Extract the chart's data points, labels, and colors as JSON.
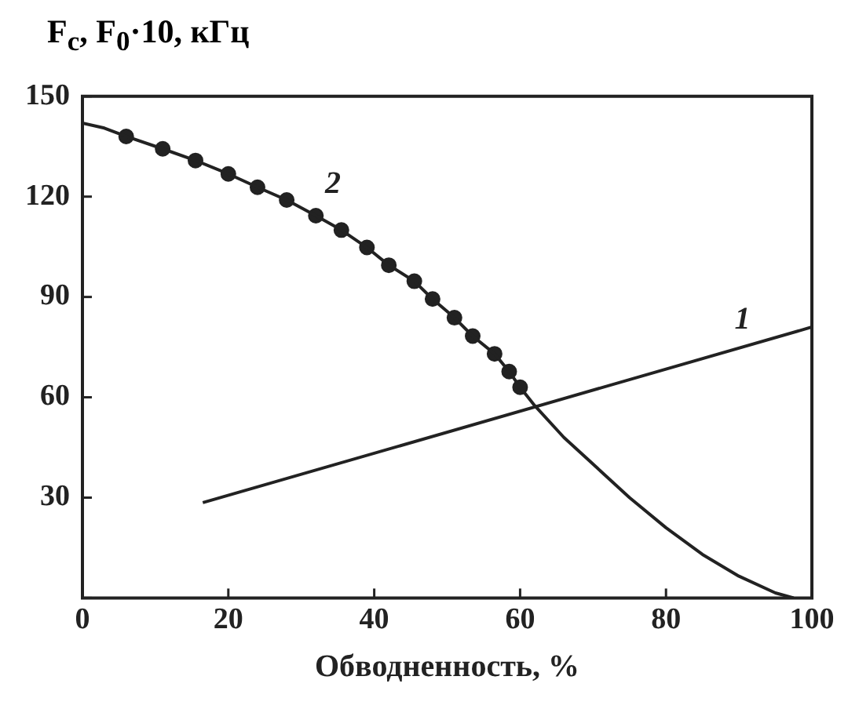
{
  "chart_data": {
    "type": "line",
    "ylabel": "F$_{c}$, F$_{0}$·10, кГц",
    "xlabel": "Обводненность, %",
    "xlim": [
      0,
      100
    ],
    "xticks": [
      0,
      20,
      40,
      60,
      80,
      100
    ],
    "ylim": [
      0,
      150
    ],
    "yticks": [
      {
        "value": 0,
        "label": null
      },
      30,
      60,
      90,
      120,
      150
    ],
    "grid": false,
    "legend": false,
    "series": [
      {
        "type": "line",
        "name": "1",
        "color": "#222222",
        "marker": "none",
        "x": [
          16.5,
          100
        ],
        "values": [
          28.5,
          81
        ]
      },
      {
        "type": "line",
        "name": "2",
        "color": "#222222",
        "marker": "none",
        "x": [
          0,
          3,
          6,
          11,
          15.5,
          20,
          24,
          28,
          32,
          35.5,
          39,
          42,
          45.5,
          48,
          51,
          53.5,
          56.5,
          58.5,
          60,
          62,
          66,
          70,
          75,
          80,
          85,
          90,
          95,
          97.5
        ],
        "values": [
          142,
          140.5,
          138,
          134.3,
          130.8,
          126.8,
          122.8,
          119,
          114.3,
          110,
          104.8,
          99.5,
          94.7,
          89.4,
          83.8,
          78.3,
          73,
          67.7,
          63,
          57.5,
          48,
          40,
          30,
          21,
          13,
          6.5,
          1.5,
          0
        ]
      },
      {
        "type": "scatter",
        "color": "#222222",
        "marker": "circle",
        "x": [
          6,
          11,
          15.5,
          20,
          24,
          28,
          32,
          35.5,
          39,
          42,
          45.5,
          48,
          51,
          53.5,
          56.5,
          58.5,
          60
        ],
        "values": [
          138,
          134.3,
          130.8,
          126.8,
          122.8,
          119,
          114.3,
          110,
          104.8,
          99.5,
          94.7,
          89.4,
          83.8,
          78.3,
          73,
          67.7,
          63
        ]
      }
    ]
  }
}
